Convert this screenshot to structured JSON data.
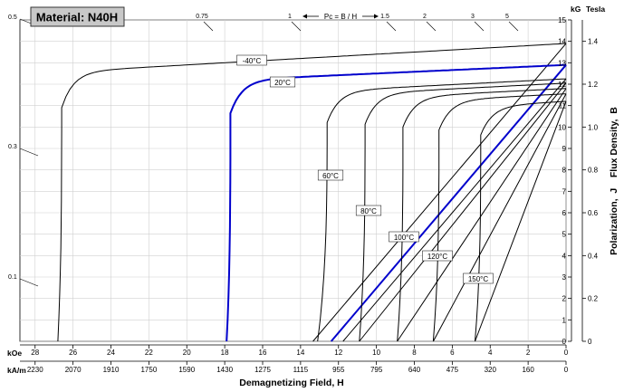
{
  "chart_data": {
    "type": "line",
    "title": "Material: N40H",
    "xlabel": "Demagnetizing Field, H",
    "ylabel": "Polarization,  J    Flux Density,  B",
    "x_unit_koe": "kOe",
    "x_unit_kam": "kA/m",
    "y_unit_kg": "kG",
    "y_unit_tesla": "Tesla",
    "x_koe_ticks": [
      "28",
      "26",
      "24",
      "22",
      "20",
      "18",
      "16",
      "14",
      "12",
      "10",
      "8",
      "6",
      "4",
      "2",
      "0"
    ],
    "x_koe_ticks_values": [
      28,
      26,
      24,
      22,
      20,
      18,
      16,
      14,
      12,
      10,
      8,
      6,
      4,
      2,
      0
    ],
    "x_kam_ticks": [
      "2230",
      "2070",
      "1910",
      "1750",
      "1590",
      "1430",
      "1275",
      "1115",
      "955",
      "795",
      "640",
      "475",
      "320",
      "160",
      "0"
    ],
    "y_kg_ticks": [
      "0",
      "1",
      "2",
      "3",
      "4",
      "5",
      "6",
      "7",
      "8",
      "9",
      "10",
      "11",
      "12",
      "13",
      "14",
      "15"
    ],
    "y_tesla_ticks": [
      "0",
      "0.2",
      "0.4",
      "0.6",
      "0.8",
      "1.0",
      "1.2",
      "1.4"
    ],
    "y_tesla_ticks_values": [
      0,
      0.2,
      0.4,
      0.6,
      0.8,
      1.0,
      1.2,
      1.4
    ],
    "xlim_koe": [
      28.8,
      0
    ],
    "ylim_kg": [
      0,
      15
    ],
    "pc_label": "Pc = B / H",
    "pc_top_labels": [
      "0.75",
      "1",
      "1.5",
      "2",
      "3",
      "5"
    ],
    "pc_left_labels": [
      "0.5",
      "0.3",
      "0.1"
    ],
    "series": [
      {
        "name": "-40°C",
        "color": "#000000",
        "Br": 13.9,
        "Hk": 26.6,
        "Hcj": 26.8,
        "j_slope": 0.05
      },
      {
        "name": "20°C",
        "color": "#0000cc",
        "Br": 12.9,
        "Hk": 17.7,
        "Hcj": 17.9,
        "j_slope": 0.04
      },
      {
        "name": "60°C",
        "color": "#000000",
        "Br": 12.25,
        "Hk": 12.6,
        "Hcj": 13.1,
        "j_slope": 0.045
      },
      {
        "name": "80°C",
        "color": "#000000",
        "Br": 12.05,
        "Hk": 10.6,
        "Hcj": 10.9,
        "j_slope": 0.045
      },
      {
        "name": "100°C",
        "color": "#000000",
        "Br": 11.8,
        "Hk": 8.6,
        "Hcj": 8.9,
        "j_slope": 0.045
      },
      {
        "name": "120°C",
        "color": "#000000",
        "Br": 11.55,
        "Hk": 6.7,
        "Hcj": 7.0,
        "j_slope": 0.045
      },
      {
        "name": "150°C",
        "color": "#000000",
        "Br": 11.2,
        "Hk": 4.5,
        "Hcj": 4.8,
        "j_slope": 0.05
      }
    ],
    "grid": true
  }
}
